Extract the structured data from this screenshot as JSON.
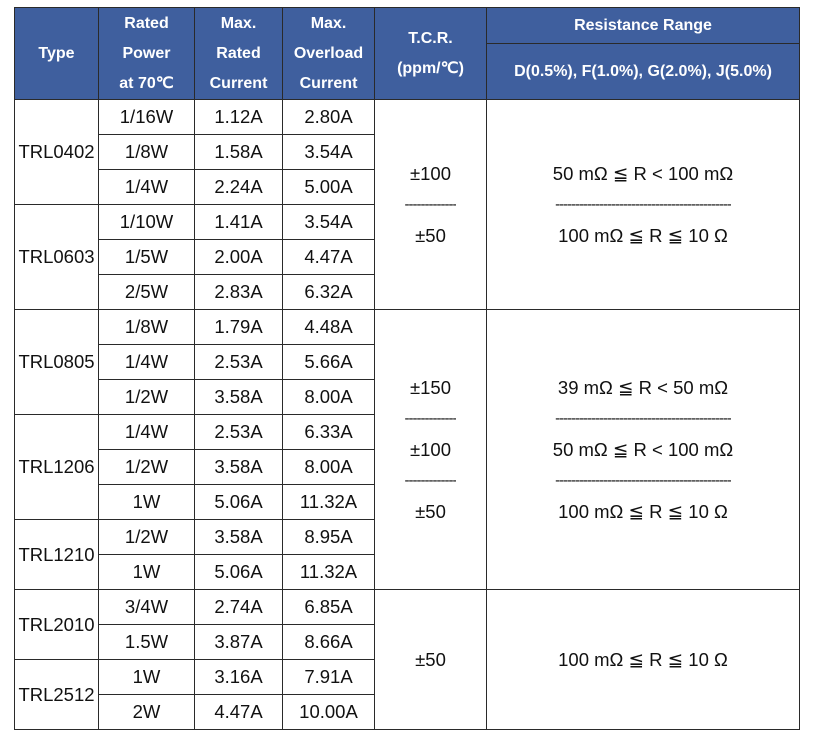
{
  "header": {
    "type": "Type",
    "rated_power": [
      "Rated",
      "Power",
      "at 70℃"
    ],
    "max_rated_current": [
      "Max.",
      "Rated",
      "Current"
    ],
    "max_overload_current": [
      "Max.",
      "Overload",
      "Current"
    ],
    "tcr": [
      "T.C.R.",
      "(ppm/℃)"
    ],
    "resistance_range": "Resistance Range",
    "tolerance": "D(0.5%), F(1.0%), G(2.0%), J(5.0%)"
  },
  "groups": [
    {
      "types": [
        {
          "name": "TRL0402",
          "rows": [
            [
              "1/16W",
              "1.12A",
              "2.80A"
            ],
            [
              "1/8W",
              "1.58A",
              "3.54A"
            ],
            [
              "1/4W",
              "2.24A",
              "5.00A"
            ]
          ]
        },
        {
          "name": "TRL0603",
          "rows": [
            [
              "1/10W",
              "1.41A",
              "3.54A"
            ],
            [
              "1/5W",
              "2.00A",
              "4.47A"
            ],
            [
              "2/5W",
              "2.83A",
              "6.32A"
            ]
          ]
        }
      ],
      "tcr": [
        "±100",
        "±50"
      ],
      "ranges": [
        "50 mΩ ≦ R < 100 mΩ",
        "100 mΩ ≦ R ≦ 10 Ω"
      ]
    },
    {
      "types": [
        {
          "name": "TRL0805",
          "rows": [
            [
              "1/8W",
              "1.79A",
              "4.48A"
            ],
            [
              "1/4W",
              "2.53A",
              "5.66A"
            ],
            [
              "1/2W",
              "3.58A",
              "8.00A"
            ]
          ]
        },
        {
          "name": "TRL1206",
          "rows": [
            [
              "1/4W",
              "2.53A",
              "6.33A"
            ],
            [
              "1/2W",
              "3.58A",
              "8.00A"
            ],
            [
              "1W",
              "5.06A",
              "11.32A"
            ]
          ]
        },
        {
          "name": "TRL1210",
          "rows": [
            [
              "1/2W",
              "3.58A",
              "8.95A"
            ],
            [
              "1W",
              "5.06A",
              "11.32A"
            ]
          ]
        }
      ],
      "tcr": [
        "±150",
        "±100",
        "±50"
      ],
      "ranges": [
        "39 mΩ ≦ R < 50 mΩ",
        "50 mΩ ≦ R < 100 mΩ",
        "100 mΩ ≦ R ≦ 10 Ω"
      ]
    },
    {
      "types": [
        {
          "name": "TRL2010",
          "rows": [
            [
              "3/4W",
              "2.74A",
              "6.85A"
            ],
            [
              "1.5W",
              "3.87A",
              "8.66A"
            ]
          ]
        },
        {
          "name": "TRL2512",
          "rows": [
            [
              "1W",
              "3.16A",
              "7.91A"
            ],
            [
              "2W",
              "4.47A",
              "10.00A"
            ]
          ]
        }
      ],
      "tcr": [
        "±50"
      ],
      "ranges": [
        "100 mΩ ≦ R ≦ 10 Ω"
      ]
    }
  ],
  "separators": {
    "tcr": "-------------",
    "range": "--------------------------------------------"
  },
  "colors": {
    "header_bg": "#3f5f9e",
    "header_text": "#ffffff",
    "border": "#2a2a2a"
  }
}
